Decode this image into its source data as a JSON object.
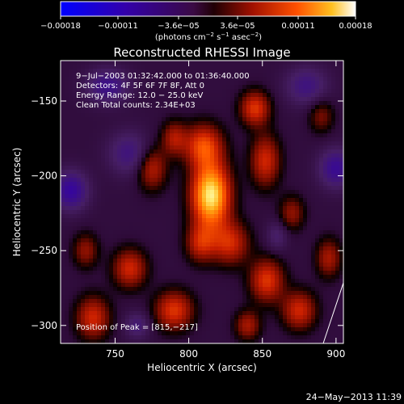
{
  "chart_data": {
    "type": "heatmap",
    "title": "Reconstructed RHESSI Image",
    "xlabel": "Heliocentric X (arcsec)",
    "ylabel": "Heliocentric Y (arcsec)",
    "xlim": [
      713,
      905
    ],
    "ylim": [
      -312,
      -123
    ],
    "x_ticks": [
      {
        "value": 750,
        "label": "750"
      },
      {
        "value": 800,
        "label": "800"
      },
      {
        "value": 850,
        "label": "850"
      },
      {
        "value": 900,
        "label": "900"
      }
    ],
    "y_ticks": [
      {
        "value": -150,
        "label": "−150"
      },
      {
        "value": -200,
        "label": "−200"
      },
      {
        "value": -250,
        "label": "−250"
      },
      {
        "value": -300,
        "label": "−300"
      }
    ],
    "colorbar": {
      "range": [
        -0.00018,
        0.00018
      ],
      "ticks": [
        {
          "value": -0.00018,
          "label": "−0.00018"
        },
        {
          "value": -0.00011,
          "label": "−0.00011"
        },
        {
          "value": -3.6e-05,
          "label": "−3.6e−05"
        },
        {
          "value": 3.6e-05,
          "label": "3.6e−05"
        },
        {
          "value": 0.00011,
          "label": "0.00011"
        },
        {
          "value": 0.00018,
          "label": "0.00018"
        }
      ],
      "units_prefix": "(photons cm",
      "units_exp1": "−2",
      "units_mid": " s",
      "units_exp2": "−1",
      "units_mid2": " asec",
      "units_exp3": "−2",
      "units_suffix": ")"
    },
    "annotations": [
      "9−Jul−2003 01:32:42.000 to 01:36:40.000",
      "Detectors: 4F 5F 6F 7F 8F, Att 0",
      "Energy Range: 12.0 − 25.0 keV",
      "Clean    Total counts: 2.34E+03"
    ],
    "peak_label": "Position of Peak = [815,−217]",
    "peak": {
      "x": 815,
      "y": -217
    },
    "blobs": [
      {
        "x": 815,
        "y": -213,
        "sx": 9,
        "sy": 15,
        "a": 1.0
      },
      {
        "x": 810,
        "y": -180,
        "sx": 9,
        "sy": 10,
        "a": 0.55
      },
      {
        "x": 828,
        "y": -245,
        "sx": 9,
        "sy": 10,
        "a": 0.45
      },
      {
        "x": 808,
        "y": -245,
        "sx": 7,
        "sy": 9,
        "a": 0.4
      },
      {
        "x": 845,
        "y": -155,
        "sx": 7,
        "sy": 8,
        "a": 0.5
      },
      {
        "x": 852,
        "y": -190,
        "sx": 7,
        "sy": 12,
        "a": 0.45
      },
      {
        "x": 775,
        "y": -195,
        "sx": 7,
        "sy": 10,
        "a": 0.4
      },
      {
        "x": 790,
        "y": -175,
        "sx": 6,
        "sy": 8,
        "a": 0.35
      },
      {
        "x": 790,
        "y": -290,
        "sx": 9,
        "sy": 9,
        "a": 0.5
      },
      {
        "x": 760,
        "y": -262,
        "sx": 8,
        "sy": 9,
        "a": 0.45
      },
      {
        "x": 735,
        "y": -295,
        "sx": 8,
        "sy": 10,
        "a": 0.45
      },
      {
        "x": 730,
        "y": -250,
        "sx": 6,
        "sy": 8,
        "a": 0.3
      },
      {
        "x": 853,
        "y": -270,
        "sx": 8,
        "sy": 10,
        "a": 0.5
      },
      {
        "x": 875,
        "y": -290,
        "sx": 8,
        "sy": 9,
        "a": 0.45
      },
      {
        "x": 895,
        "y": -255,
        "sx": 6,
        "sy": 9,
        "a": 0.35
      },
      {
        "x": 840,
        "y": -300,
        "sx": 6,
        "sy": 7,
        "a": 0.35
      },
      {
        "x": 870,
        "y": -225,
        "sx": 6,
        "sy": 8,
        "a": 0.3
      },
      {
        "x": 890,
        "y": -160,
        "sx": 6,
        "sy": 8,
        "a": 0.25
      },
      {
        "x": 745,
        "y": -140,
        "sx": 10,
        "sy": 8,
        "a": -0.35
      },
      {
        "x": 720,
        "y": -210,
        "sx": 8,
        "sy": 9,
        "a": -0.45
      },
      {
        "x": 760,
        "y": -185,
        "sx": 10,
        "sy": 10,
        "a": -0.3
      },
      {
        "x": 880,
        "y": -140,
        "sx": 10,
        "sy": 9,
        "a": -0.3
      },
      {
        "x": 900,
        "y": -195,
        "sx": 8,
        "sy": 9,
        "a": -0.4
      },
      {
        "x": 765,
        "y": -300,
        "sx": 6,
        "sy": 6,
        "a": -0.25
      },
      {
        "x": 860,
        "y": -240,
        "sx": 5,
        "sy": 7,
        "a": -0.2
      }
    ]
  },
  "footer": {
    "timestamp": "24−May−2013 11:39"
  }
}
